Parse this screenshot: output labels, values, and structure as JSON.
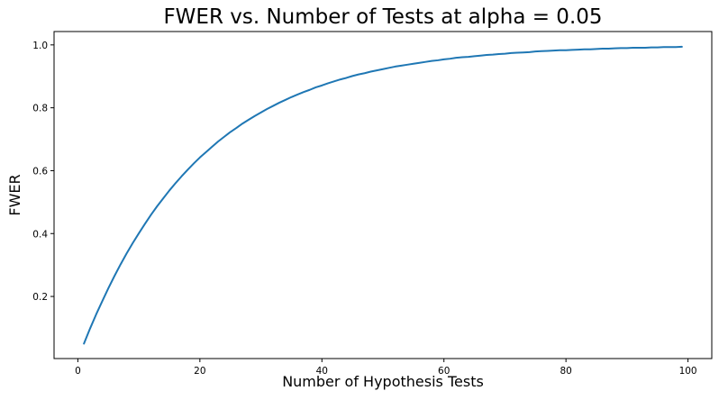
{
  "chart_data": {
    "type": "line",
    "title": "FWER vs. Number of Tests at alpha = 0.05",
    "xlabel": "Number of Hypothesis Tests",
    "ylabel": "FWER",
    "xlim": [
      -3.9,
      103.9
    ],
    "ylim": [
      0.0025,
      1.0425
    ],
    "xticks": [
      0,
      20,
      40,
      60,
      80,
      100
    ],
    "xtick_labels": [
      "0",
      "20",
      "40",
      "60",
      "80",
      "100"
    ],
    "yticks": [
      0.2,
      0.4,
      0.6,
      0.8,
      1.0
    ],
    "ytick_labels": [
      "0.2",
      "0.4",
      "0.6",
      "0.8",
      "1.0"
    ],
    "grid": false,
    "legend": "none",
    "series": [
      {
        "color": "#1f77b4",
        "x": [
          1,
          2,
          3,
          4,
          5,
          6,
          7,
          8,
          9,
          10,
          11,
          12,
          13,
          14,
          15,
          16,
          17,
          18,
          19,
          20,
          21,
          22,
          23,
          24,
          25,
          26,
          27,
          28,
          29,
          30,
          31,
          32,
          33,
          34,
          35,
          36,
          37,
          38,
          39,
          40,
          41,
          42,
          43,
          44,
          45,
          46,
          47,
          48,
          49,
          50,
          51,
          52,
          53,
          54,
          55,
          56,
          57,
          58,
          59,
          60,
          61,
          62,
          63,
          64,
          65,
          66,
          67,
          68,
          69,
          70,
          71,
          72,
          73,
          74,
          75,
          76,
          77,
          78,
          79,
          80,
          81,
          82,
          83,
          84,
          85,
          86,
          87,
          88,
          89,
          90,
          91,
          92,
          93,
          94,
          95,
          96,
          97,
          98,
          99
        ],
        "y": [
          0.05,
          0.098,
          0.143,
          0.185,
          0.226,
          0.265,
          0.302,
          0.337,
          0.37,
          0.401,
          0.431,
          0.46,
          0.487,
          0.512,
          0.537,
          0.56,
          0.582,
          0.603,
          0.623,
          0.642,
          0.659,
          0.676,
          0.693,
          0.708,
          0.723,
          0.736,
          0.75,
          0.762,
          0.774,
          0.785,
          0.796,
          0.806,
          0.816,
          0.825,
          0.834,
          0.842,
          0.85,
          0.857,
          0.865,
          0.871,
          0.878,
          0.884,
          0.89,
          0.895,
          0.901,
          0.906,
          0.91,
          0.915,
          0.919,
          0.923,
          0.927,
          0.931,
          0.934,
          0.937,
          0.94,
          0.943,
          0.946,
          0.949,
          0.951,
          0.954,
          0.956,
          0.959,
          0.961,
          0.962,
          0.964,
          0.966,
          0.968,
          0.969,
          0.971,
          0.972,
          0.974,
          0.975,
          0.976,
          0.977,
          0.979,
          0.98,
          0.981,
          0.982,
          0.983,
          0.983,
          0.984,
          0.985,
          0.986,
          0.986,
          0.987,
          0.988,
          0.988,
          0.989,
          0.99,
          0.99,
          0.991,
          0.991,
          0.991,
          0.992,
          0.992,
          0.993,
          0.993,
          0.993,
          0.994
        ]
      }
    ]
  }
}
